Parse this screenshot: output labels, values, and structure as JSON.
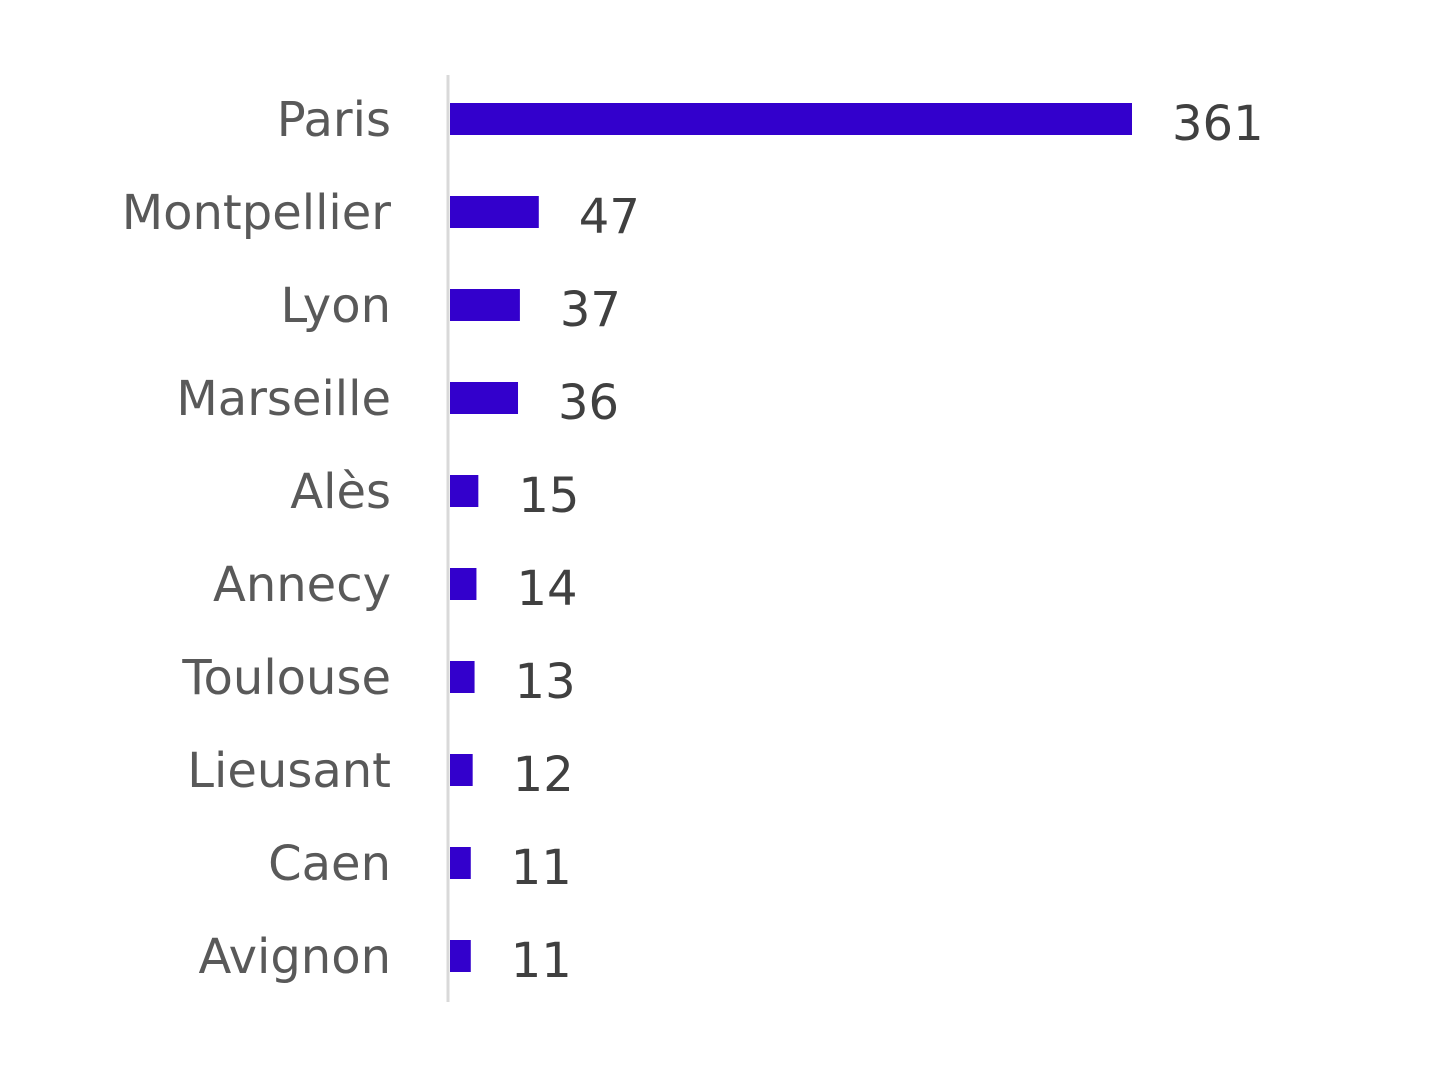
{
  "chart_data": {
    "type": "bar",
    "orientation": "horizontal",
    "categories": [
      "Paris",
      "Montpellier",
      "Lyon",
      "Marseille",
      "Alès",
      "Annecy",
      "Toulouse",
      "Lieusant",
      "Caen",
      "Avignon"
    ],
    "values": [
      361,
      47,
      37,
      36,
      15,
      14,
      13,
      12,
      11,
      11
    ],
    "title": "",
    "xlabel": "",
    "ylabel": "",
    "xlim": [
      0,
      361
    ],
    "grid": false,
    "legend": "none",
    "data_labels": true,
    "colors": {
      "bar": "#3300CC",
      "axis": "#D9D9D9",
      "category_text": "#595959",
      "value_text": "#404040"
    }
  }
}
